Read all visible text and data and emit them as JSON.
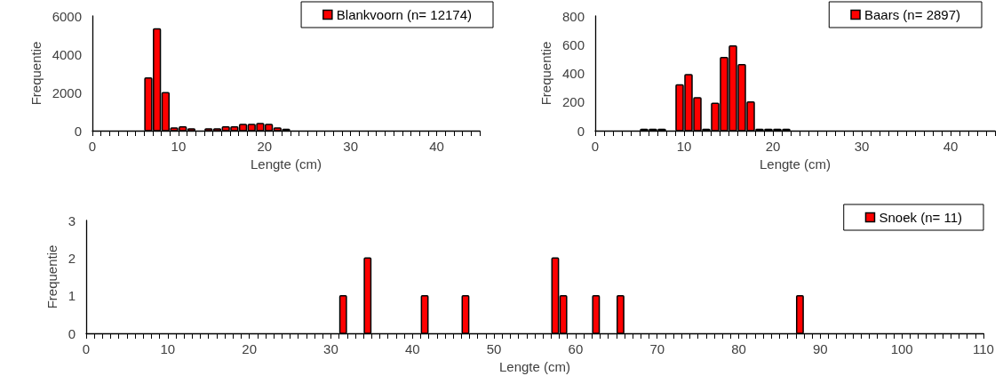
{
  "chart_data": [
    {
      "type": "histogram",
      "xlabel": "Lengte (cm)",
      "ylabel": "Frequentie",
      "bins": [
        6,
        7,
        8,
        9,
        10,
        11,
        12,
        13,
        14,
        15,
        16,
        17,
        18,
        19,
        20,
        21,
        22,
        23
      ],
      "series": [
        {
          "name": "Blankvoorn (n= 12174)",
          "color": "#ff0000",
          "values": [
            2760,
            5330,
            1990,
            140,
            200,
            90,
            0,
            90,
            90,
            200,
            200,
            320,
            320,
            370,
            320,
            140,
            70
          ]
        }
      ],
      "xlim": [
        0,
        45
      ],
      "xticks": [
        0,
        {
          "value": 1,
          "label": null
        },
        {
          "value": 2,
          "label": null
        },
        {
          "value": 3,
          "label": null
        },
        {
          "value": 4,
          "label": null
        },
        {
          "value": 5,
          "label": null
        },
        {
          "value": 6,
          "label": null
        },
        {
          "value": 7,
          "label": null
        },
        {
          "value": 8,
          "label": null
        },
        {
          "value": 9,
          "label": null
        },
        10,
        {
          "value": 11,
          "label": null
        },
        {
          "value": 12,
          "label": null
        },
        {
          "value": 13,
          "label": null
        },
        {
          "value": 14,
          "label": null
        },
        {
          "value": 15,
          "label": null
        },
        {
          "value": 16,
          "label": null
        },
        {
          "value": 17,
          "label": null
        },
        {
          "value": 18,
          "label": null
        },
        {
          "value": 19,
          "label": null
        },
        20,
        {
          "value": 21,
          "label": null
        },
        {
          "value": 22,
          "label": null
        },
        {
          "value": 23,
          "label": null
        },
        {
          "value": 24,
          "label": null
        },
        {
          "value": 25,
          "label": null
        },
        {
          "value": 26,
          "label": null
        },
        {
          "value": 27,
          "label": null
        },
        {
          "value": 28,
          "label": null
        },
        {
          "value": 29,
          "label": null
        },
        30,
        {
          "value": 31,
          "label": null
        },
        {
          "value": 32,
          "label": null
        },
        {
          "value": 33,
          "label": null
        },
        {
          "value": 34,
          "label": null
        },
        {
          "value": 35,
          "label": null
        },
        {
          "value": 36,
          "label": null
        },
        {
          "value": 37,
          "label": null
        },
        {
          "value": 38,
          "label": null
        },
        {
          "value": 39,
          "label": null
        },
        40,
        {
          "value": 41,
          "label": null
        },
        {
          "value": 42,
          "label": null
        },
        {
          "value": 43,
          "label": null
        },
        {
          "value": 44,
          "label": null
        },
        {
          "value": 45,
          "label": null
        }
      ],
      "ylim": [
        0,
        6000
      ],
      "yticks": [
        0,
        2000,
        4000,
        6000
      ],
      "grid": false,
      "legend": "top right"
    },
    {
      "type": "histogram",
      "xlabel": "Lengte (cm)",
      "ylabel": "Frequentie",
      "bins": [
        5,
        6,
        7,
        8,
        9,
        10,
        11,
        12,
        13,
        14,
        15,
        16,
        17,
        18,
        19,
        20,
        21,
        22
      ],
      "series": [
        {
          "name": "Baars (n= 2897)",
          "color": "#ff0000",
          "values": [
            10,
            10,
            10,
            0,
            320,
            390,
            230,
            10,
            190,
            510,
            590,
            460,
            200,
            10,
            10,
            10,
            10
          ]
        }
      ],
      "xlim": [
        0,
        45
      ],
      "xticks": [
        0,
        {
          "value": 1,
          "label": null
        },
        {
          "value": 2,
          "label": null
        },
        {
          "value": 3,
          "label": null
        },
        {
          "value": 4,
          "label": null
        },
        {
          "value": 5,
          "label": null
        },
        {
          "value": 6,
          "label": null
        },
        {
          "value": 7,
          "label": null
        },
        {
          "value": 8,
          "label": null
        },
        {
          "value": 9,
          "label": null
        },
        10,
        {
          "value": 11,
          "label": null
        },
        {
          "value": 12,
          "label": null
        },
        {
          "value": 13,
          "label": null
        },
        {
          "value": 14,
          "label": null
        },
        {
          "value": 15,
          "label": null
        },
        {
          "value": 16,
          "label": null
        },
        {
          "value": 17,
          "label": null
        },
        {
          "value": 18,
          "label": null
        },
        {
          "value": 19,
          "label": null
        },
        20,
        {
          "value": 21,
          "label": null
        },
        {
          "value": 22,
          "label": null
        },
        {
          "value": 23,
          "label": null
        },
        {
          "value": 24,
          "label": null
        },
        {
          "value": 25,
          "label": null
        },
        {
          "value": 26,
          "label": null
        },
        {
          "value": 27,
          "label": null
        },
        {
          "value": 28,
          "label": null
        },
        {
          "value": 29,
          "label": null
        },
        30,
        {
          "value": 31,
          "label": null
        },
        {
          "value": 32,
          "label": null
        },
        {
          "value": 33,
          "label": null
        },
        {
          "value": 34,
          "label": null
        },
        {
          "value": 35,
          "label": null
        },
        {
          "value": 36,
          "label": null
        },
        {
          "value": 37,
          "label": null
        },
        {
          "value": 38,
          "label": null
        },
        {
          "value": 39,
          "label": null
        },
        40,
        {
          "value": 41,
          "label": null
        },
        {
          "value": 42,
          "label": null
        },
        {
          "value": 43,
          "label": null
        },
        {
          "value": 44,
          "label": null
        },
        {
          "value": 45,
          "label": null
        }
      ],
      "ylim": [
        0,
        800
      ],
      "yticks": [
        0,
        200,
        400,
        600,
        800
      ],
      "grid": false,
      "legend": "top right"
    },
    {
      "type": "histogram",
      "xlabel": "Lengte (cm)",
      "ylabel": "Frequentie",
      "bins": [
        31,
        32,
        33,
        34,
        35,
        36,
        37,
        38,
        39,
        40,
        41,
        42,
        43,
        44,
        45,
        46,
        47,
        48,
        49,
        50,
        51,
        52,
        53,
        54,
        55,
        56,
        57,
        58,
        59,
        60,
        61,
        62,
        63,
        64,
        65,
        66,
        67,
        68,
        69,
        70,
        71,
        72,
        73,
        74,
        75,
        76,
        77,
        78,
        79,
        80,
        81,
        82,
        83,
        84,
        85,
        86,
        87,
        88
      ],
      "series": [
        {
          "name": "Snoek (n= 11)",
          "color": "#ff0000",
          "values": [
            1,
            0,
            0,
            2,
            0,
            0,
            0,
            0,
            0,
            0,
            1,
            0,
            0,
            0,
            0,
            1,
            0,
            0,
            0,
            0,
            0,
            0,
            0,
            0,
            0,
            0,
            2,
            1,
            0,
            0,
            0,
            1,
            0,
            0,
            1,
            0,
            0,
            0,
            0,
            0,
            0,
            0,
            0,
            0,
            0,
            0,
            0,
            0,
            0,
            0,
            0,
            0,
            0,
            0,
            0,
            0,
            1
          ]
        }
      ],
      "xlim": [
        0,
        110
      ],
      "xticks": [
        0,
        {
          "value": 1,
          "label": null
        },
        {
          "value": 2,
          "label": null
        },
        {
          "value": 3,
          "label": null
        },
        {
          "value": 4,
          "label": null
        },
        {
          "value": 5,
          "label": null
        },
        {
          "value": 6,
          "label": null
        },
        {
          "value": 7,
          "label": null
        },
        {
          "value": 8,
          "label": null
        },
        {
          "value": 9,
          "label": null
        },
        10,
        {
          "value": 11,
          "label": null
        },
        {
          "value": 12,
          "label": null
        },
        {
          "value": 13,
          "label": null
        },
        {
          "value": 14,
          "label": null
        },
        {
          "value": 15,
          "label": null
        },
        {
          "value": 16,
          "label": null
        },
        {
          "value": 17,
          "label": null
        },
        {
          "value": 18,
          "label": null
        },
        {
          "value": 19,
          "label": null
        },
        20,
        {
          "value": 21,
          "label": null
        },
        {
          "value": 22,
          "label": null
        },
        {
          "value": 23,
          "label": null
        },
        {
          "value": 24,
          "label": null
        },
        {
          "value": 25,
          "label": null
        },
        {
          "value": 26,
          "label": null
        },
        {
          "value": 27,
          "label": null
        },
        {
          "value": 28,
          "label": null
        },
        {
          "value": 29,
          "label": null
        },
        30,
        {
          "value": 31,
          "label": null
        },
        {
          "value": 32,
          "label": null
        },
        {
          "value": 33,
          "label": null
        },
        {
          "value": 34,
          "label": null
        },
        {
          "value": 35,
          "label": null
        },
        {
          "value": 36,
          "label": null
        },
        {
          "value": 37,
          "label": null
        },
        {
          "value": 38,
          "label": null
        },
        {
          "value": 39,
          "label": null
        },
        40,
        {
          "value": 41,
          "label": null
        },
        {
          "value": 42,
          "label": null
        },
        {
          "value": 43,
          "label": null
        },
        {
          "value": 44,
          "label": null
        },
        {
          "value": 45,
          "label": null
        },
        {
          "value": 46,
          "label": null
        },
        {
          "value": 47,
          "label": null
        },
        {
          "value": 48,
          "label": null
        },
        {
          "value": 49,
          "label": null
        },
        50,
        {
          "value": 51,
          "label": null
        },
        {
          "value": 52,
          "label": null
        },
        {
          "value": 53,
          "label": null
        },
        {
          "value": 54,
          "label": null
        },
        {
          "value": 55,
          "label": null
        },
        {
          "value": 56,
          "label": null
        },
        {
          "value": 57,
          "label": null
        },
        {
          "value": 58,
          "label": null
        },
        {
          "value": 59,
          "label": null
        },
        60,
        {
          "value": 61,
          "label": null
        },
        {
          "value": 62,
          "label": null
        },
        {
          "value": 63,
          "label": null
        },
        {
          "value": 64,
          "label": null
        },
        {
          "value": 65,
          "label": null
        },
        {
          "value": 66,
          "label": null
        },
        {
          "value": 67,
          "label": null
        },
        {
          "value": 68,
          "label": null
        },
        {
          "value": 69,
          "label": null
        },
        70,
        {
          "value": 71,
          "label": null
        },
        {
          "value": 72,
          "label": null
        },
        {
          "value": 73,
          "label": null
        },
        {
          "value": 74,
          "label": null
        },
        {
          "value": 75,
          "label": null
        },
        {
          "value": 76,
          "label": null
        },
        {
          "value": 77,
          "label": null
        },
        {
          "value": 78,
          "label": null
        },
        {
          "value": 79,
          "label": null
        },
        80,
        {
          "value": 81,
          "label": null
        },
        {
          "value": 82,
          "label": null
        },
        {
          "value": 83,
          "label": null
        },
        {
          "value": 84,
          "label": null
        },
        {
          "value": 85,
          "label": null
        },
        {
          "value": 86,
          "label": null
        },
        {
          "value": 87,
          "label": null
        },
        {
          "value": 88,
          "label": null
        },
        {
          "value": 89,
          "label": null
        },
        90,
        {
          "value": 91,
          "label": null
        },
        {
          "value": 92,
          "label": null
        },
        {
          "value": 93,
          "label": null
        },
        {
          "value": 94,
          "label": null
        },
        {
          "value": 95,
          "label": null
        },
        {
          "value": 96,
          "label": null
        },
        {
          "value": 97,
          "label": null
        },
        {
          "value": 98,
          "label": null
        },
        {
          "value": 99,
          "label": null
        },
        100,
        {
          "value": 101,
          "label": null
        },
        {
          "value": 102,
          "label": null
        },
        {
          "value": 103,
          "label": null
        },
        {
          "value": 104,
          "label": null
        },
        {
          "value": 105,
          "label": null
        },
        {
          "value": 106,
          "label": null
        },
        {
          "value": 107,
          "label": null
        },
        {
          "value": 108,
          "label": null
        },
        {
          "value": 109,
          "label": null
        },
        110
      ],
      "ylim": [
        0,
        3
      ],
      "yticks": [
        0,
        1,
        2,
        3
      ],
      "grid": false,
      "legend": "top right"
    }
  ]
}
